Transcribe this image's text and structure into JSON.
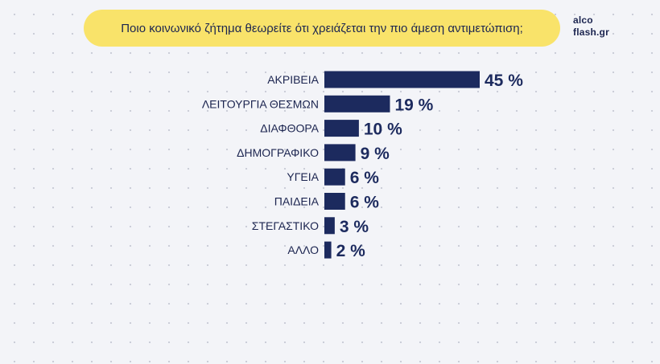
{
  "header": {
    "question": "Ποιο κοινωνικό ζήτημα θεωρείτε ότι χρειάζεται την πιο άμεση αντιμετώπιση;"
  },
  "logo": {
    "line1": "alco",
    "line2": "flash.gr"
  },
  "colors": {
    "bar": "#1c2a5e",
    "text": "#1c2550",
    "pill": "#f9e36a"
  },
  "chart_data": {
    "type": "bar",
    "orientation": "horizontal",
    "categories": [
      "ΑΚΡΙΒΕΙΑ",
      "ΛΕΙΤΟΥΡΓΙΑ ΘΕΣΜΩΝ",
      "ΔΙΑΦΘΟΡΑ",
      "ΔΗΜΟΓΡΑΦΙΚΟ",
      "ΥΓΕΙΑ",
      "ΠΑΙΔΕΙΑ",
      "ΣΤΕΓΑΣΤΙΚΟ",
      "ΑΛΛΟ"
    ],
    "values": [
      45,
      19,
      10,
      9,
      6,
      6,
      3,
      2
    ],
    "value_labels": [
      "45 %",
      "19 %",
      "10 %",
      "9 %",
      "6 %",
      "6 %",
      "3 %",
      "2 %"
    ],
    "unit": "%",
    "xlim": [
      0,
      45
    ],
    "grid": false,
    "legend": "none"
  }
}
